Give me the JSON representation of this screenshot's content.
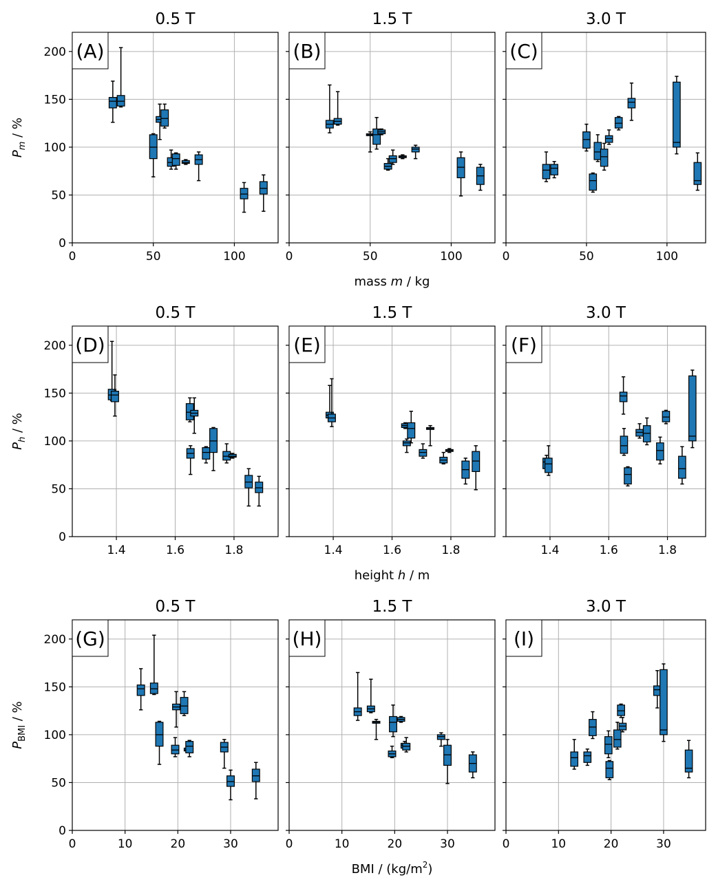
{
  "chart_data": [
    {
      "type": "box",
      "panel": "A",
      "title": "0.5 T",
      "row": 0,
      "col": 0,
      "xlabel": "",
      "ylabel": "P_m / %",
      "xlim": [
        0,
        127
      ],
      "ylim": [
        0,
        220
      ],
      "xticks": [
        0,
        50,
        100
      ],
      "yticks": [
        0,
        50,
        100,
        150,
        200
      ],
      "boxes": [
        {
          "x": 25,
          "min": 126,
          "q1": 141,
          "med": 148,
          "q3": 152,
          "max": 169
        },
        {
          "x": 30,
          "min": 142,
          "q1": 143,
          "med": 148,
          "q3": 154,
          "max": 204
        },
        {
          "x": 50,
          "min": 69,
          "q1": 88,
          "med": 100,
          "q3": 113,
          "max": 114
        },
        {
          "x": 54,
          "min": 108,
          "q1": 126,
          "med": 129,
          "q3": 132,
          "max": 145
        },
        {
          "x": 57,
          "min": 120,
          "q1": 122,
          "med": 130,
          "q3": 139,
          "max": 145
        },
        {
          "x": 61,
          "min": 77,
          "q1": 80,
          "med": 84,
          "q3": 89,
          "max": 97
        },
        {
          "x": 64,
          "min": 77,
          "q1": 81,
          "med": 88,
          "q3": 93,
          "max": 94
        },
        {
          "x": 70,
          "min": 82,
          "q1": 83,
          "med": 84,
          "q3": 86,
          "max": 87
        },
        {
          "x": 78,
          "min": 65,
          "q1": 82,
          "med": 87,
          "q3": 92,
          "max": 95
        },
        {
          "x": 106,
          "min": 32,
          "q1": 46,
          "med": 51,
          "q3": 57,
          "max": 63
        },
        {
          "x": 118,
          "min": 33,
          "q1": 51,
          "med": 57,
          "q3": 64,
          "max": 71
        }
      ]
    },
    {
      "type": "box",
      "panel": "B",
      "title": "1.5 T",
      "row": 0,
      "col": 1,
      "xlabel": "mass m / kg",
      "ylabel": "",
      "xlim": [
        0,
        127
      ],
      "ylim": [
        0,
        220
      ],
      "xticks": [
        0,
        50,
        100
      ],
      "yticks": [
        0,
        50,
        100,
        150,
        200
      ],
      "boxes": [
        {
          "x": 25,
          "min": 115,
          "q1": 120,
          "med": 124,
          "q3": 128,
          "max": 165
        },
        {
          "x": 30,
          "min": 123,
          "q1": 124,
          "med": 127,
          "q3": 130,
          "max": 158
        },
        {
          "x": 50,
          "min": 95,
          "q1": 112,
          "med": 113,
          "q3": 114,
          "max": 116
        },
        {
          "x": 54,
          "min": 98,
          "q1": 103,
          "med": 113,
          "q3": 119,
          "max": 131
        },
        {
          "x": 57,
          "min": 113,
          "q1": 114,
          "med": 116,
          "q3": 118,
          "max": 119
        },
        {
          "x": 61,
          "min": 76,
          "q1": 77,
          "med": 80,
          "q3": 83,
          "max": 88
        },
        {
          "x": 64,
          "min": 82,
          "q1": 84,
          "med": 88,
          "q3": 91,
          "max": 97
        },
        {
          "x": 70,
          "min": 88,
          "q1": 89,
          "med": 90,
          "q3": 91,
          "max": 92
        },
        {
          "x": 78,
          "min": 88,
          "q1": 95,
          "med": 98,
          "q3": 100,
          "max": 102
        },
        {
          "x": 106,
          "min": 49,
          "q1": 68,
          "med": 79,
          "q3": 89,
          "max": 95
        },
        {
          "x": 118,
          "min": 55,
          "q1": 61,
          "med": 70,
          "q3": 79,
          "max": 82
        }
      ]
    },
    {
      "type": "box",
      "panel": "C",
      "title": "3.0 T",
      "row": 0,
      "col": 2,
      "xlabel": "",
      "ylabel": "",
      "xlim": [
        0,
        124
      ],
      "ylim": [
        0,
        220
      ],
      "xticks": [
        0,
        50,
        100
      ],
      "yticks": [
        0,
        50,
        100,
        150,
        200
      ],
      "boxes": [
        {
          "x": 25,
          "min": 64,
          "q1": 67,
          "med": 76,
          "q3": 82,
          "max": 95
        },
        {
          "x": 30,
          "min": 68,
          "q1": 71,
          "med": 78,
          "q3": 82,
          "max": 85
        },
        {
          "x": 50,
          "min": 96,
          "q1": 99,
          "med": 108,
          "q3": 116,
          "max": 124
        },
        {
          "x": 54,
          "min": 53,
          "q1": 55,
          "med": 65,
          "q3": 72,
          "max": 73
        },
        {
          "x": 57,
          "min": 85,
          "q1": 87,
          "med": 95,
          "q3": 105,
          "max": 113
        },
        {
          "x": 61,
          "min": 76,
          "q1": 80,
          "med": 90,
          "q3": 98,
          "max": 104
        },
        {
          "x": 64,
          "min": 103,
          "q1": 105,
          "med": 109,
          "q3": 112,
          "max": 118
        },
        {
          "x": 70,
          "min": 118,
          "q1": 120,
          "med": 125,
          "q3": 131,
          "max": 132
        },
        {
          "x": 78,
          "min": 128,
          "q1": 141,
          "med": 147,
          "q3": 151,
          "max": 167
        },
        {
          "x": 106,
          "min": 93,
          "q1": 100,
          "med": 105,
          "q3": 168,
          "max": 174
        },
        {
          "x": 119,
          "min": 55,
          "q1": 61,
          "med": 65,
          "q3": 84,
          "max": 94
        }
      ]
    },
    {
      "type": "box",
      "panel": "D",
      "title": "0.5 T",
      "row": 1,
      "col": 0,
      "xlabel": "",
      "ylabel": "P_h / %",
      "xlim": [
        1.25,
        1.95
      ],
      "ylim": [
        0,
        220
      ],
      "xticks": [
        1.4,
        1.6,
        1.8
      ],
      "yticks": [
        0,
        50,
        100,
        150,
        200
      ],
      "boxes": [
        {
          "x": 1.385,
          "min": 142,
          "q1": 143,
          "med": 148,
          "q3": 154,
          "max": 204
        },
        {
          "x": 1.395,
          "min": 126,
          "q1": 141,
          "med": 148,
          "q3": 152,
          "max": 169
        },
        {
          "x": 1.65,
          "min": 120,
          "q1": 122,
          "med": 130,
          "q3": 139,
          "max": 145
        },
        {
          "x": 1.652,
          "min": 65,
          "q1": 82,
          "med": 87,
          "q3": 92,
          "max": 95
        },
        {
          "x": 1.665,
          "min": 108,
          "q1": 126,
          "med": 129,
          "q3": 132,
          "max": 145
        },
        {
          "x": 1.705,
          "min": 77,
          "q1": 81,
          "med": 88,
          "q3": 93,
          "max": 94
        },
        {
          "x": 1.73,
          "min": 69,
          "q1": 88,
          "med": 100,
          "q3": 113,
          "max": 114
        },
        {
          "x": 1.775,
          "min": 77,
          "q1": 80,
          "med": 84,
          "q3": 89,
          "max": 97
        },
        {
          "x": 1.795,
          "min": 82,
          "q1": 83,
          "med": 84,
          "q3": 86,
          "max": 87
        },
        {
          "x": 1.85,
          "min": 32,
          "q1": 51,
          "med": 57,
          "q3": 64,
          "max": 71
        },
        {
          "x": 1.885,
          "min": 32,
          "q1": 46,
          "med": 51,
          "q3": 57,
          "max": 63
        }
      ]
    },
    {
      "type": "box",
      "panel": "E",
      "title": "1.5 T",
      "row": 1,
      "col": 1,
      "xlabel": "height h / m",
      "ylabel": "",
      "xlim": [
        1.25,
        1.95
      ],
      "ylim": [
        0,
        220
      ],
      "xticks": [
        1.4,
        1.6,
        1.8
      ],
      "yticks": [
        0,
        50,
        100,
        150,
        200
      ],
      "boxes": [
        {
          "x": 1.388,
          "min": 123,
          "q1": 124,
          "med": 127,
          "q3": 130,
          "max": 158
        },
        {
          "x": 1.395,
          "min": 115,
          "q1": 120,
          "med": 124,
          "q3": 128,
          "max": 165
        },
        {
          "x": 1.645,
          "min": 113,
          "q1": 114,
          "med": 116,
          "q3": 118,
          "max": 119
        },
        {
          "x": 1.65,
          "min": 88,
          "q1": 95,
          "med": 98,
          "q3": 100,
          "max": 102
        },
        {
          "x": 1.665,
          "min": 98,
          "q1": 103,
          "med": 113,
          "q3": 119,
          "max": 131
        },
        {
          "x": 1.705,
          "min": 82,
          "q1": 84,
          "med": 88,
          "q3": 91,
          "max": 97
        },
        {
          "x": 1.73,
          "min": 95,
          "q1": 112,
          "med": 113,
          "q3": 114,
          "max": 116
        },
        {
          "x": 1.775,
          "min": 76,
          "q1": 77,
          "med": 80,
          "q3": 83,
          "max": 88
        },
        {
          "x": 1.795,
          "min": 88,
          "q1": 89,
          "med": 90,
          "q3": 91,
          "max": 92
        },
        {
          "x": 1.85,
          "min": 55,
          "q1": 61,
          "med": 70,
          "q3": 79,
          "max": 82
        },
        {
          "x": 1.885,
          "min": 49,
          "q1": 68,
          "med": 79,
          "q3": 89,
          "max": 95
        }
      ]
    },
    {
      "type": "box",
      "panel": "F",
      "title": "3.0 T",
      "row": 1,
      "col": 2,
      "xlabel": "",
      "ylabel": "",
      "xlim": [
        1.25,
        1.93
      ],
      "ylim": [
        0,
        220
      ],
      "xticks": [
        1.4,
        1.6,
        1.8
      ],
      "yticks": [
        0,
        50,
        100,
        150,
        200
      ],
      "boxes": [
        {
          "x": 1.388,
          "min": 68,
          "q1": 71,
          "med": 78,
          "q3": 82,
          "max": 85
        },
        {
          "x": 1.395,
          "min": 64,
          "q1": 67,
          "med": 76,
          "q3": 82,
          "max": 95
        },
        {
          "x": 1.65,
          "min": 128,
          "q1": 141,
          "med": 147,
          "q3": 151,
          "max": 167
        },
        {
          "x": 1.652,
          "min": 85,
          "q1": 87,
          "med": 95,
          "q3": 105,
          "max": 113
        },
        {
          "x": 1.665,
          "min": 53,
          "q1": 55,
          "med": 65,
          "q3": 72,
          "max": 73
        },
        {
          "x": 1.705,
          "min": 103,
          "q1": 105,
          "med": 109,
          "q3": 112,
          "max": 118
        },
        {
          "x": 1.73,
          "min": 96,
          "q1": 99,
          "med": 108,
          "q3": 116,
          "max": 124
        },
        {
          "x": 1.775,
          "min": 76,
          "q1": 80,
          "med": 90,
          "q3": 98,
          "max": 104
        },
        {
          "x": 1.795,
          "min": 118,
          "q1": 120,
          "med": 125,
          "q3": 131,
          "max": 132
        },
        {
          "x": 1.85,
          "min": 55,
          "q1": 61,
          "med": 71,
          "q3": 84,
          "max": 94
        },
        {
          "x": 1.885,
          "min": 93,
          "q1": 100,
          "med": 105,
          "q3": 168,
          "max": 174
        }
      ]
    },
    {
      "type": "box",
      "panel": "G",
      "title": "0.5 T",
      "row": 2,
      "col": 0,
      "xlabel": "",
      "ylabel": "P_BMI / %",
      "xlim": [
        0,
        39
      ],
      "ylim": [
        0,
        220
      ],
      "xticks": [
        0,
        10,
        20,
        30
      ],
      "yticks": [
        0,
        50,
        100,
        150,
        200
      ],
      "boxes": [
        {
          "x": 13,
          "min": 126,
          "q1": 141,
          "med": 148,
          "q3": 152,
          "max": 169
        },
        {
          "x": 15.5,
          "min": 142,
          "q1": 143,
          "med": 148,
          "q3": 154,
          "max": 204
        },
        {
          "x": 16.5,
          "min": 69,
          "q1": 88,
          "med": 100,
          "q3": 113,
          "max": 114
        },
        {
          "x": 19.5,
          "min": 77,
          "q1": 80,
          "med": 84,
          "q3": 89,
          "max": 97
        },
        {
          "x": 19.7,
          "min": 108,
          "q1": 126,
          "med": 129,
          "q3": 132,
          "max": 145
        },
        {
          "x": 21.2,
          "min": 120,
          "q1": 122,
          "med": 130,
          "q3": 139,
          "max": 145
        },
        {
          "x": 21.9,
          "min": 82,
          "q1": 83,
          "med": 84,
          "q3": 86,
          "max": 87
        },
        {
          "x": 22.2,
          "min": 77,
          "q1": 81,
          "med": 88,
          "q3": 93,
          "max": 94
        },
        {
          "x": 28.8,
          "min": 65,
          "q1": 82,
          "med": 87,
          "q3": 92,
          "max": 95
        },
        {
          "x": 30,
          "min": 32,
          "q1": 46,
          "med": 51,
          "q3": 57,
          "max": 63
        },
        {
          "x": 34.8,
          "min": 33,
          "q1": 51,
          "med": 57,
          "q3": 64,
          "max": 71
        }
      ]
    },
    {
      "type": "box",
      "panel": "H",
      "title": "1.5 T",
      "row": 2,
      "col": 1,
      "xlabel": "BMI / (kg/m²)",
      "ylabel": "",
      "xlim": [
        0,
        39
      ],
      "ylim": [
        0,
        220
      ],
      "xticks": [
        0,
        10,
        20,
        30
      ],
      "yticks": [
        0,
        50,
        100,
        150,
        200
      ],
      "boxes": [
        {
          "x": 13,
          "min": 115,
          "q1": 120,
          "med": 124,
          "q3": 128,
          "max": 165
        },
        {
          "x": 15.5,
          "min": 123,
          "q1": 124,
          "med": 127,
          "q3": 130,
          "max": 158
        },
        {
          "x": 16.5,
          "min": 95,
          "q1": 112,
          "med": 113,
          "q3": 114,
          "max": 116
        },
        {
          "x": 19.5,
          "min": 76,
          "q1": 77,
          "med": 80,
          "q3": 83,
          "max": 88
        },
        {
          "x": 19.7,
          "min": 98,
          "q1": 103,
          "med": 113,
          "q3": 119,
          "max": 131
        },
        {
          "x": 21.2,
          "min": 113,
          "q1": 114,
          "med": 116,
          "q3": 118,
          "max": 119
        },
        {
          "x": 21.9,
          "min": 85,
          "q1": 86,
          "med": 89,
          "q3": 91,
          "max": 93
        },
        {
          "x": 22.2,
          "min": 82,
          "q1": 84,
          "med": 88,
          "q3": 91,
          "max": 97
        },
        {
          "x": 28.8,
          "min": 88,
          "q1": 95,
          "med": 98,
          "q3": 100,
          "max": 102
        },
        {
          "x": 30,
          "min": 49,
          "q1": 68,
          "med": 79,
          "q3": 89,
          "max": 95
        },
        {
          "x": 34.8,
          "min": 55,
          "q1": 61,
          "med": 70,
          "q3": 79,
          "max": 82
        }
      ]
    },
    {
      "type": "box",
      "panel": "I",
      "title": "3.0 T",
      "row": 2,
      "col": 2,
      "xlabel": "",
      "ylabel": "",
      "xlim": [
        0,
        38
      ],
      "ylim": [
        0,
        220
      ],
      "xticks": [
        0,
        10,
        20,
        30
      ],
      "yticks": [
        0,
        50,
        100,
        150,
        200
      ],
      "boxes": [
        {
          "x": 13,
          "min": 64,
          "q1": 67,
          "med": 76,
          "q3": 82,
          "max": 95
        },
        {
          "x": 15.5,
          "min": 68,
          "q1": 71,
          "med": 78,
          "q3": 82,
          "max": 85
        },
        {
          "x": 16.5,
          "min": 96,
          "q1": 99,
          "med": 108,
          "q3": 116,
          "max": 124
        },
        {
          "x": 19.5,
          "min": 76,
          "q1": 80,
          "med": 90,
          "q3": 98,
          "max": 104
        },
        {
          "x": 19.7,
          "min": 53,
          "q1": 55,
          "med": 65,
          "q3": 72,
          "max": 73
        },
        {
          "x": 21.2,
          "min": 85,
          "q1": 87,
          "med": 95,
          "q3": 105,
          "max": 113
        },
        {
          "x": 21.9,
          "min": 118,
          "q1": 120,
          "med": 125,
          "q3": 131,
          "max": 132
        },
        {
          "x": 22.2,
          "min": 103,
          "q1": 105,
          "med": 109,
          "q3": 112,
          "max": 118
        },
        {
          "x": 28.8,
          "min": 128,
          "q1": 141,
          "med": 147,
          "q3": 151,
          "max": 167
        },
        {
          "x": 30,
          "min": 93,
          "q1": 100,
          "med": 105,
          "q3": 168,
          "max": 174
        },
        {
          "x": 34.8,
          "min": 55,
          "q1": 61,
          "med": 65,
          "q3": 84,
          "max": 94
        }
      ]
    }
  ]
}
